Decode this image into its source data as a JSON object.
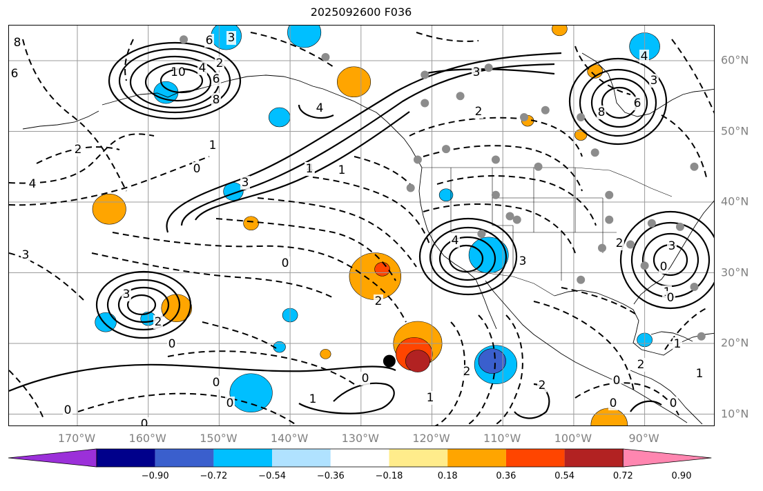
{
  "title": "2025092600 F036",
  "lat_labels": [
    {
      "text": "60°N",
      "lat": 60
    },
    {
      "text": "50°N",
      "lat": 50
    },
    {
      "text": "40°N",
      "lat": 40
    },
    {
      "text": "30°N",
      "lat": 30
    },
    {
      "text": "20°N",
      "lat": 20
    },
    {
      "text": "10°N",
      "lat": 10
    }
  ],
  "lon_labels": [
    {
      "text": "170°W",
      "lon": -170
    },
    {
      "text": "160°W",
      "lon": -160
    },
    {
      "text": "150°W",
      "lon": -150
    },
    {
      "text": "140°W",
      "lon": -140
    },
    {
      "text": "130°W",
      "lon": -130
    },
    {
      "text": "120°W",
      "lon": -120
    },
    {
      "text": "110°W",
      "lon": -110
    },
    {
      "text": "100°W",
      "lon": -100
    },
    {
      "text": "90°W",
      "lon": -90
    }
  ],
  "colorbar": {
    "colors": [
      "#9b30d9",
      "#00008b",
      "#3a5fcd",
      "#00bfff",
      "#b0e2ff",
      "#ffffff",
      "#ffec8b",
      "#ffa500",
      "#ff4500",
      "#b22222",
      "#ff86b0"
    ],
    "ticks": [
      "−0.90",
      "−0.72",
      "−0.54",
      "−0.36",
      "−0.18",
      "0.18",
      "0.36",
      "0.54",
      "0.72",
      "0.90"
    ]
  },
  "contour_labels": [
    "8",
    "6",
    "6",
    "3",
    "2",
    "4",
    "10",
    "8",
    "6",
    "0",
    "1",
    "4",
    "3",
    "4",
    "1",
    "1",
    "3",
    "2",
    "0",
    "2",
    "3",
    "4",
    "2",
    "4",
    "3",
    "2",
    "0",
    "0",
    "1",
    "6",
    "8",
    "2",
    "0",
    "1",
    "3",
    "1",
    "0",
    "1",
    "0",
    "2",
    "2",
    "0",
    "3",
    "2",
    "4",
    "0",
    "0",
    "1",
    "3",
    "0",
    "0",
    "0"
  ],
  "shaded_regions": [
    {
      "center": [
        -149,
        63.5
      ],
      "value": -0.4
    },
    {
      "center": [
        -157.5,
        55.5
      ],
      "value": -0.4
    },
    {
      "center": [
        -141.5,
        52
      ],
      "value": -0.4
    },
    {
      "center": [
        -138,
        64
      ],
      "value": -0.4
    },
    {
      "center": [
        -148,
        41.5
      ],
      "value": -0.4
    },
    {
      "center": [
        -165.5,
        39
      ],
      "value": 0.45
    },
    {
      "center": [
        -145.5,
        37
      ],
      "value": 0.45
    },
    {
      "center": [
        -131,
        57
      ],
      "value": 0.45
    },
    {
      "center": [
        -118,
        41
      ],
      "value": -0.4
    },
    {
      "center": [
        -128,
        29.5
      ],
      "value": 0.45
    },
    {
      "center": [
        -127,
        30.5
      ],
      "value": 0.6
    },
    {
      "center": [
        -156,
        25
      ],
      "value": 0.45
    },
    {
      "center": [
        -166,
        23
      ],
      "value": -0.4
    },
    {
      "center": [
        -160,
        23.5
      ],
      "value": -0.4
    },
    {
      "center": [
        -140,
        24
      ],
      "value": -0.4
    },
    {
      "center": [
        -141.5,
        19.5
      ],
      "value": -0.4
    },
    {
      "center": [
        -145.5,
        13
      ],
      "value": -0.4
    },
    {
      "center": [
        -135,
        18.5
      ],
      "value": 0.45
    },
    {
      "center": [
        -122,
        20
      ],
      "value": 0.45
    },
    {
      "center": [
        -122.5,
        18.5
      ],
      "value": 0.63
    },
    {
      "center": [
        -122,
        17.5
      ],
      "value": 0.8
    },
    {
      "center": [
        -111,
        17
      ],
      "value": -0.4
    },
    {
      "center": [
        -111.5,
        17.5
      ],
      "value": -0.6
    },
    {
      "center": [
        -112,
        32.5
      ],
      "value": -0.4
    },
    {
      "center": [
        -95,
        8.5
      ],
      "value": 0.45
    },
    {
      "center": [
        -90,
        20.5
      ],
      "value": -0.4
    },
    {
      "center": [
        -99,
        49.5
      ],
      "value": 0.45
    },
    {
      "center": [
        -106.5,
        51.5
      ],
      "value": 0.45
    },
    {
      "center": [
        -90,
        62
      ],
      "value": -0.4
    },
    {
      "center": [
        -97,
        58.5
      ],
      "value": 0.45
    },
    {
      "center": [
        -102,
        64.5
      ],
      "value": 0.45
    }
  ],
  "markers": [
    {
      "lon": -126,
      "lat": 17.5
    }
  ],
  "dot_markers": [
    [
      -155,
      63
    ],
    [
      -135,
      60.5
    ],
    [
      -112,
      59
    ],
    [
      -104,
      53
    ],
    [
      -107,
      52
    ],
    [
      -121,
      54
    ],
    [
      -99,
      52
    ],
    [
      -122,
      46
    ],
    [
      -118,
      47.5
    ],
    [
      -111,
      46
    ],
    [
      -105,
      45
    ],
    [
      -97,
      47
    ],
    [
      -123,
      42
    ],
    [
      -111,
      41
    ],
    [
      -108,
      37.5
    ],
    [
      -95,
      41
    ],
    [
      -95,
      37.5
    ],
    [
      -89,
      37
    ],
    [
      -96,
      33.5
    ],
    [
      -99,
      29
    ],
    [
      -92,
      34
    ],
    [
      -90,
      31
    ],
    [
      -83,
      45
    ],
    [
      -85,
      36.5
    ],
    [
      -83,
      28
    ],
    [
      -82,
      21
    ],
    [
      -109,
      38
    ],
    [
      -113,
      35.5
    ],
    [
      -121,
      58
    ],
    [
      -116,
      55
    ]
  ]
}
